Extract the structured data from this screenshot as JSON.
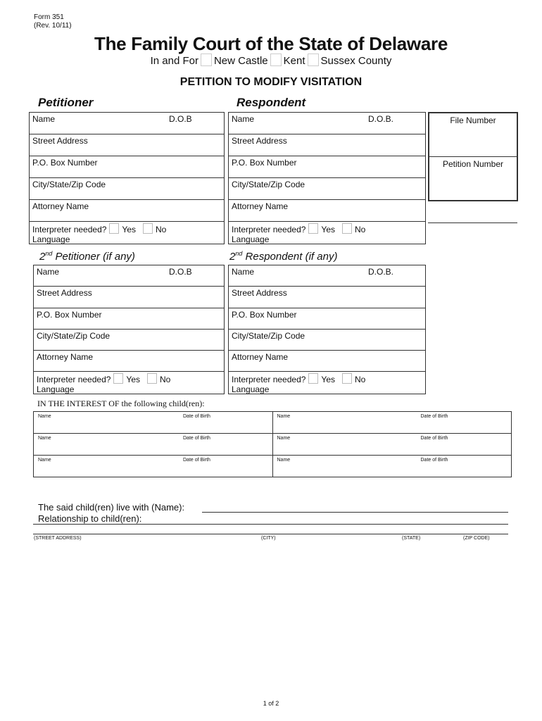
{
  "header": {
    "form": "Form 351",
    "rev": "(Rev. 10/11)",
    "title": "The Family Court of the State of Delaware",
    "in_and_for": "In and For",
    "counties": [
      "New Castle",
      "Kent",
      "Sussex County"
    ],
    "petition_title": "PETITION TO MODIFY VISITATION"
  },
  "petitioner": {
    "heading": "Petitioner",
    "name": "Name",
    "dob": "D.O.B",
    "rows": [
      "Street Address",
      "P.O. Box Number",
      "City/State/Zip Code",
      "Attorney Name"
    ],
    "interp": "Interpreter needed?",
    "yes": "Yes",
    "no": "No",
    "language": "Language"
  },
  "respondent": {
    "heading": "Respondent",
    "name": "Name",
    "dob": "D.O.B.",
    "rows": [
      "Street Address",
      "P.O. Box Number",
      "City/State/Zip Code",
      "Attorney Name"
    ],
    "interp": "Interpreter needed?",
    "yes": "Yes",
    "no": "No",
    "language": "Language"
  },
  "file_box": {
    "file_number": "File Number",
    "petition_number": "Petition Number"
  },
  "petitioner2": {
    "heading_sup": "nd",
    "heading_num": "2",
    "heading": " Petitioner (if any)",
    "name": "Name",
    "dob": "D.O.B",
    "rows": [
      "Street Address",
      "P.O. Box Number",
      "City/State/Zip Code",
      "Attorney Name"
    ],
    "interp": "Interpreter needed?",
    "yes": "Yes",
    "no": "No",
    "language": "Language"
  },
  "respondent2": {
    "heading_sup": "nd",
    "heading_num": "2",
    "heading": "  Respondent (if any)",
    "name": "Name",
    "dob": "D.O.B.",
    "rows": [
      "Street Address",
      "P.O. Box Number",
      "City/State/Zip Code",
      "Attorney Name"
    ],
    "interp": "Interpreter needed?",
    "yes": "Yes",
    "no": "No",
    "language": "Language"
  },
  "children": {
    "heading": "IN THE INTEREST OF the following child(ren):",
    "name": "Name",
    "dob": "Date of Birth",
    "rows": 3
  },
  "live_with": {
    "label": "The said child(ren) live with (Name):",
    "relationship": "Relationship to child(ren):",
    "street": "(STREET ADDRESS)",
    "city": "(CITY)",
    "state": "(STATE)",
    "zip": "(ZIP CODE)"
  },
  "footer": {
    "page": "1 of 2"
  }
}
